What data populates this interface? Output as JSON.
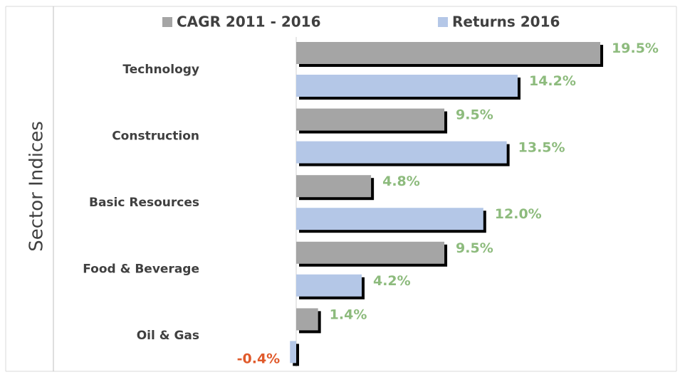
{
  "chart_data": {
    "type": "hbar",
    "y_axis_label": "Sector Indices",
    "categories": [
      "Technology",
      "Construction",
      "Basic Resources",
      "Food & Beverage",
      "Oil & Gas"
    ],
    "series": [
      {
        "name": "CAGR 2011 - 2016",
        "color": "#a5a5a5",
        "values": [
          19.5,
          9.5,
          4.8,
          9.5,
          1.4
        ],
        "value_labels": [
          "19.5%",
          "9.5%",
          "4.8%",
          "9.5%",
          "1.4%"
        ]
      },
      {
        "name": "Returns 2016",
        "color": "#b4c7e7",
        "values": [
          14.2,
          13.5,
          12.0,
          4.2,
          -0.4
        ],
        "value_labels": [
          "14.2%",
          "13.5%",
          "12.0%",
          "4.2%",
          "-0.4%"
        ]
      }
    ],
    "label_color": "#8dbb7d",
    "negative_label_color": "#e05a2b"
  }
}
